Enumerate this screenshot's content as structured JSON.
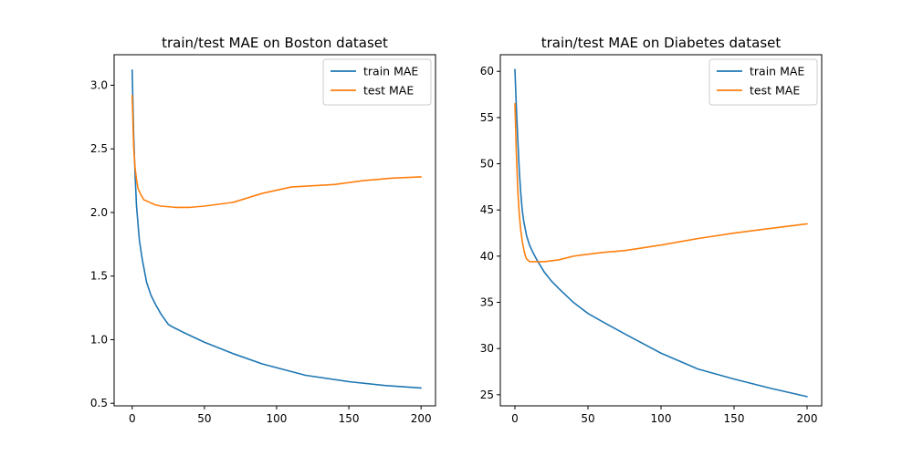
{
  "chart_data": [
    {
      "type": "line",
      "title": "train/test MAE on Boston dataset",
      "xlabel": "",
      "ylabel": "",
      "xlim": [
        -12.5,
        210
      ],
      "ylim": [
        0.48,
        3.24
      ],
      "xticks": [
        0,
        50,
        100,
        150,
        200
      ],
      "yticks": [
        0.5,
        1.0,
        1.5,
        2.0,
        2.5,
        3.0
      ],
      "ytick_format": 1,
      "legend": "top-right",
      "series": [
        {
          "name": "train MAE",
          "color": "#1f77b4",
          "x": [
            0,
            1,
            2,
            3,
            5,
            7,
            10,
            13,
            16,
            20,
            25,
            28,
            35,
            50,
            70,
            90,
            120,
            150,
            175,
            200
          ],
          "y": [
            3.12,
            2.62,
            2.3,
            2.05,
            1.78,
            1.63,
            1.45,
            1.35,
            1.28,
            1.2,
            1.12,
            1.1,
            1.06,
            0.98,
            0.89,
            0.81,
            0.72,
            0.67,
            0.64,
            0.62
          ]
        },
        {
          "name": "test MAE",
          "color": "#ff7f0e",
          "x": [
            0,
            1,
            2,
            3,
            4,
            6,
            8,
            12,
            16,
            20,
            30,
            40,
            50,
            70,
            90,
            110,
            125,
            140,
            160,
            180,
            200
          ],
          "y": [
            2.92,
            2.52,
            2.35,
            2.26,
            2.19,
            2.14,
            2.1,
            2.08,
            2.06,
            2.05,
            2.04,
            2.04,
            2.05,
            2.08,
            2.15,
            2.2,
            2.21,
            2.22,
            2.25,
            2.27,
            2.28
          ]
        }
      ]
    },
    {
      "type": "line",
      "title": "train/test MAE on Diabetes dataset",
      "xlabel": "",
      "ylabel": "",
      "xlim": [
        -10,
        210
      ],
      "ylim": [
        23.8,
        61.8
      ],
      "xticks": [
        0,
        50,
        100,
        150,
        200
      ],
      "yticks": [
        25,
        30,
        35,
        40,
        45,
        50,
        55,
        60
      ],
      "ytick_format": 0,
      "legend": "top-right",
      "series": [
        {
          "name": "train MAE",
          "color": "#1f77b4",
          "x": [
            0,
            1,
            2,
            3,
            4,
            5,
            6,
            8,
            10,
            12,
            15,
            20,
            25,
            30,
            40,
            50,
            60,
            75,
            100,
            125,
            150,
            175,
            200
          ],
          "y": [
            60.2,
            56.0,
            52.5,
            49.2,
            46.8,
            45.0,
            43.8,
            42.2,
            41.2,
            40.5,
            39.6,
            38.3,
            37.3,
            36.5,
            35.0,
            33.8,
            32.9,
            31.6,
            29.5,
            27.8,
            26.7,
            25.7,
            24.8
          ]
        },
        {
          "name": "test MAE",
          "color": "#ff7f0e",
          "x": [
            0,
            1,
            2,
            3,
            4,
            5,
            6,
            7,
            8,
            10,
            12,
            15,
            20,
            30,
            40,
            50,
            60,
            75,
            100,
            125,
            150,
            175,
            200
          ],
          "y": [
            56.5,
            51.0,
            47.0,
            44.5,
            42.8,
            41.6,
            40.8,
            40.1,
            39.7,
            39.4,
            39.4,
            39.4,
            39.4,
            39.6,
            40.0,
            40.2,
            40.4,
            40.6,
            41.2,
            41.9,
            42.5,
            43.0,
            43.5
          ]
        }
      ]
    }
  ]
}
